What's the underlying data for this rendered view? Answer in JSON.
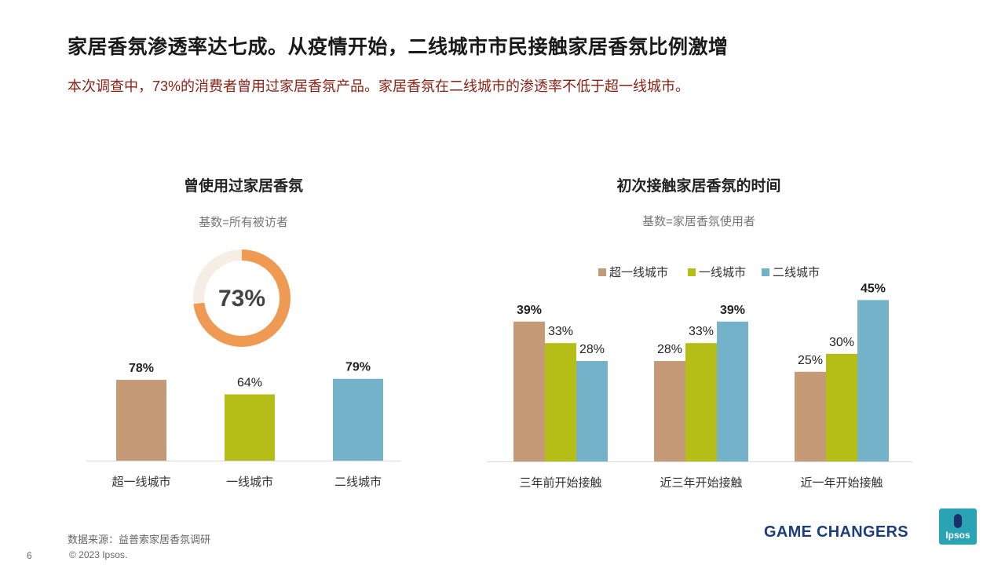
{
  "header": {
    "title": "家居香氛渗透率达七成。从疫情开始，二线城市市民接触家居香氛比例激增",
    "subtitle": "本次调查中，73%的消费者曾用过家居香氛产品。家居香氛在二线城市的渗透率不低于超一线城市。"
  },
  "left_panel": {
    "title": "曾使用过家居香氛",
    "base_note": "基数=所有被访者",
    "donut_label": "73%"
  },
  "right_panel": {
    "title": "初次接触家居香氛的时间",
    "base_note": "基数=家居香氛使用者"
  },
  "colors": {
    "super_tier1": "#c49b76",
    "tier1": "#b5bd17",
    "tier2": "#74b2c9",
    "donut_fill": "#ef9a53",
    "donut_track": "#f6ede4"
  },
  "chart_data": [
    {
      "type": "pie",
      "title": "曾使用过家居香氛",
      "values": [
        73,
        27
      ],
      "label": "73%"
    },
    {
      "type": "bar",
      "title": "曾使用过家居香氛",
      "categories": [
        "超一线城市",
        "一线城市",
        "二线城市"
      ],
      "values": [
        78,
        64,
        79
      ],
      "labels": [
        "78%",
        "64%",
        "79%"
      ],
      "bold_labels": [
        true,
        false,
        true
      ],
      "ylim": [
        0,
        100
      ]
    },
    {
      "type": "bar",
      "title": "初次接触家居香氛的时间",
      "categories": [
        "三年前开始接触",
        "近三年开始接触",
        "近一年开始接触"
      ],
      "series": [
        {
          "name": "超一线城市",
          "values": [
            39,
            28,
            25
          ],
          "labels": [
            "39%",
            "28%",
            "25%"
          ],
          "bold_labels": [
            true,
            false,
            false
          ]
        },
        {
          "name": "一线城市",
          "values": [
            33,
            33,
            30
          ],
          "labels": [
            "33%",
            "33%",
            "30%"
          ],
          "bold_labels": [
            false,
            false,
            false
          ]
        },
        {
          "name": "二线城市",
          "values": [
            28,
            39,
            45
          ],
          "labels": [
            "28%",
            "39%",
            "45%"
          ],
          "bold_labels": [
            false,
            true,
            true
          ]
        }
      ],
      "legend": "top-center",
      "ylim": [
        0,
        100
      ]
    }
  ],
  "footer": {
    "source": "数据来源：益普索家居香氛调研",
    "page_number": "6",
    "copyright": "© 2023 Ipsos.",
    "brand": "GAME CHANGERS",
    "logo_text": "Ipsos"
  }
}
